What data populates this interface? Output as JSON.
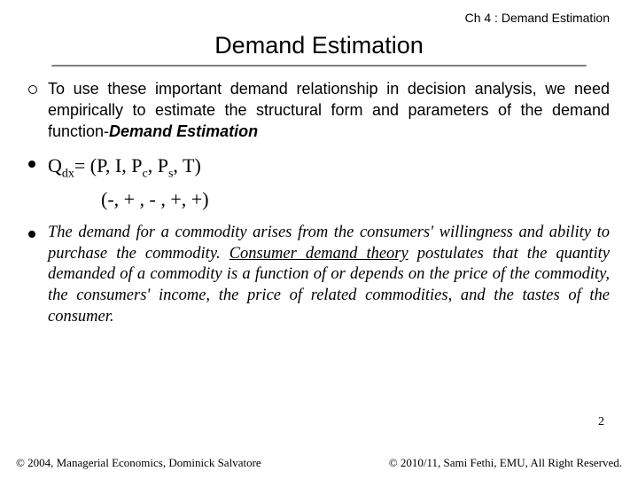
{
  "colors": {
    "background": "#ffffff",
    "text": "#000000",
    "underline": "#777777"
  },
  "chapter_header": "Ch 4 : Demand Estimation",
  "title": "Demand Estimation",
  "bullet1_text": "To use these important demand relationship in decision analysis, we need empirically to estimate the structural form and parameters of the demand function-",
  "bullet1_emph": "Demand Estimation",
  "formula": {
    "lhs_main": "Q",
    "lhs_sub": "dx",
    "rhs": "= (P, I, P",
    "rhs_sub1": "c",
    "rhs_mid": ", P",
    "rhs_sub2": "s",
    "rhs_end": ", T)",
    "signs": "(-, + , - , +, +)"
  },
  "bullet3_pre": "The demand for a commodity arises from the consumers' willingness and ability to purchase the commodity. ",
  "bullet3_underlined": "Consumer demand theory",
  "bullet3_post": " postulates that the quantity demanded of a commodity is a function of or depends on the price of the commodity, the consumers' income, the price of related commodities, and the tastes of the consumer.",
  "page_number": "2",
  "footer_left": "© 2004,  Managerial Economics, Dominick Salvatore",
  "footer_right": "© 2010/11, Sami Fethi, EMU, All Right Reserved."
}
